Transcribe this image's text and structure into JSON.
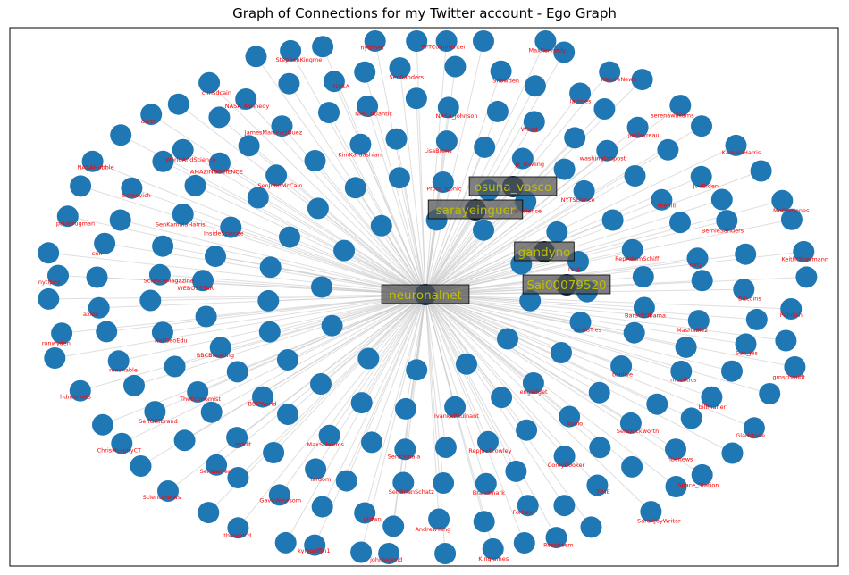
{
  "title": "Graph of Connections for my Twitter account - Ego Graph",
  "colors": {
    "node": "#1f77b4",
    "node_dark": "#08304f",
    "edge": "#c8c8c8",
    "small_label": "#ff0000",
    "highlight_text": "#bfbf00",
    "highlight_box": "#555555"
  },
  "center_node": "neuronalnet",
  "highlighted_nodes": [
    "osuna_vasco",
    "sarayeinguer",
    "gandyno",
    "Sai00079520"
  ],
  "node_labels": [
    "NASAHubble",
    "darth",
    "chrisdcain",
    "StephenKingme",
    "nytimes",
    "PFTCommenter",
    "MaxKennedy",
    "NatureNews",
    "serenawilliams",
    "KamalaHarris",
    "MotherJones",
    "KeithOlbermann",
    "Pahnish",
    "gmschmidt",
    "Gladstone",
    "Space_Station",
    "SarahJoyWriter",
    "Rossbeem",
    "Kingjames",
    "johnlegend",
    "kylegriffin1",
    "thereaIcd",
    "ScienceNews",
    "ChrisMurphyCT",
    "hdmarkets",
    "ronwyden",
    "nytlpvg",
    "paulkrugman",
    "jonfavreau",
    "JoeBiden",
    "BernieSanders",
    "Bitcoins",
    "Sun_Jas",
    "billmaher",
    "nbcnews",
    "TIME",
    "Forbes",
    "AndrewYang",
    "gtdwn",
    "GavinNewsom",
    "SenWarren",
    "SenGillibrand",
    "mashable",
    "axios",
    "cnn",
    "Cernovich",
    "WorldAndScience",
    "NASA_Kennedy",
    "NASA",
    "SenSanders",
    "Snowden",
    "latimes",
    "CoreyBooker",
    "Brandmark",
    "SenBrianSchatz",
    "lardom",
    "reddit",
    "TheEconomist",
    "NatGeoEdu",
    "ScienceMagazine",
    "SenKamalaHarris",
    "AMAZINGSCIENCE",
    "JamesMartinezQuez",
    "NHS_Atlantic",
    "NASA_Johnson",
    "Wired",
    "washingtonpost",
    "thehill",
    "nxtp",
    "Mashable2",
    "mpolitics",
    "SenDuckworth",
    "jk_rowling",
    "NYTScience",
    "RepAdamSchiff",
    "BarackObama",
    "bsnlive",
    "Apolo",
    "RepJoeCrowley",
    "SenKamala",
    "MaxSchrems",
    "BBCWorld",
    "BBCBreaking",
    "WEBOSSTAR",
    "InsideScience",
    "SenJohnMcCain",
    "KimKardashian",
    "LisaBrens",
    "Proto_Iconic",
    "RealScience",
    "Dr.Al",
    "LindaTres",
    "engadget",
    "IvankaPaulnant"
  ]
}
